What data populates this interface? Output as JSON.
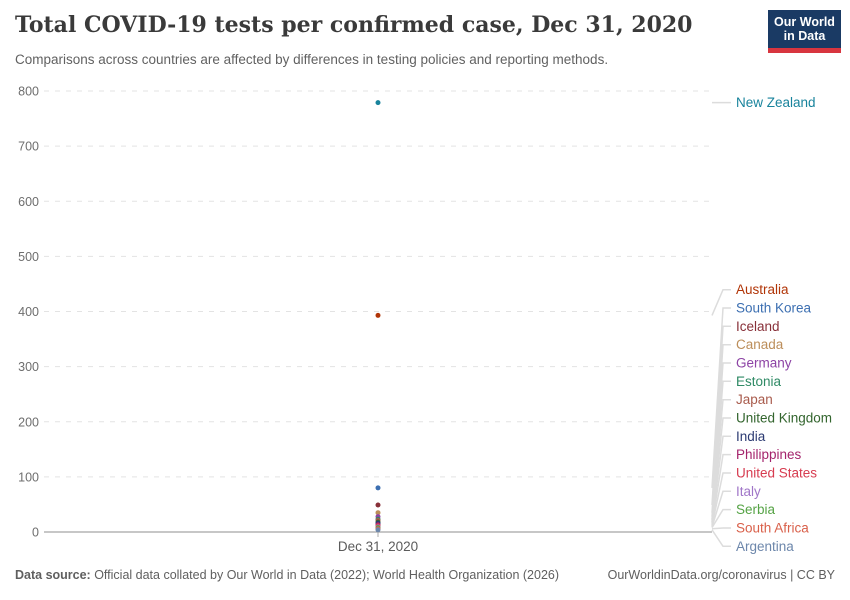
{
  "header": {
    "title": "Total COVID-19 tests per confirmed case, Dec 31, 2020",
    "subtitle": "Comparisons across countries are affected by differences in testing policies and reporting methods.",
    "logo_line1": "Our World",
    "logo_line2": "in Data"
  },
  "footer": {
    "source_label": "Data source:",
    "source_text": " Official data collated by Our World in Data (2022); World Health Organization (2026)",
    "link": "OurWorldinData.org/coronavirus | CC BY"
  },
  "chart_data": {
    "type": "scatter",
    "title": "Total COVID-19 tests per confirmed case, Dec 31, 2020",
    "x_label": "Dec 31, 2020",
    "xlabel": "",
    "ylabel": "",
    "ylim": [
      0,
      800
    ],
    "ytick_interval": 100,
    "grid": true,
    "legend_position": "right-labels",
    "colors": {
      "grid": "#e3e3e3",
      "axis": "#8f8f8f",
      "tick_text": "#6e6e6e",
      "connector": "#dcdcdc"
    },
    "series": [
      {
        "name": "New Zealand",
        "value": 779,
        "color": "#18839c"
      },
      {
        "name": "Australia",
        "value": 393,
        "color": "#b13507"
      },
      {
        "name": "South Korea",
        "value": 80,
        "color": "#3c6fb1"
      },
      {
        "name": "Iceland",
        "value": 49,
        "color": "#883039"
      },
      {
        "name": "Canada",
        "value": 35,
        "color": "#bc8e5a"
      },
      {
        "name": "Germany",
        "value": 28,
        "color": "#8d44a5"
      },
      {
        "name": "Estonia",
        "value": 23,
        "color": "#2f8a65"
      },
      {
        "name": "Japan",
        "value": 21,
        "color": "#a85b4c"
      },
      {
        "name": "United Kingdom",
        "value": 18,
        "color": "#33652e"
      },
      {
        "name": "India",
        "value": 16,
        "color": "#2b3a72"
      },
      {
        "name": "Philippines",
        "value": 13,
        "color": "#a4246c"
      },
      {
        "name": "United States",
        "value": 11,
        "color": "#d73c50"
      },
      {
        "name": "Italy",
        "value": 9,
        "color": "#a076c8"
      },
      {
        "name": "Serbia",
        "value": 8,
        "color": "#55a345"
      },
      {
        "name": "South Africa",
        "value": 6,
        "color": "#d9604a"
      },
      {
        "name": "Argentina",
        "value": 4,
        "color": "#6d87ab"
      }
    ]
  }
}
